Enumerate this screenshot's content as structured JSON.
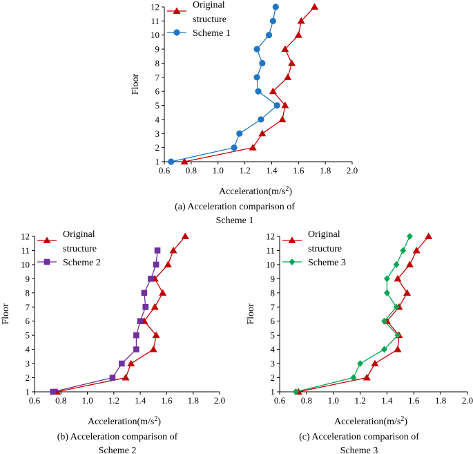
{
  "chart_data": [
    {
      "type": "line",
      "caption": "(a) Acceleration comparison of\nScheme 1",
      "xlabel": "Acceleration(m/s²)",
      "ylabel": "Floor",
      "xlim": [
        0.6,
        2.0
      ],
      "ylim": [
        1,
        12
      ],
      "x_ticks": [
        "0.6",
        "0.8",
        "1.0",
        "1.2",
        "1.4",
        "1.6",
        "1.8",
        "2.0"
      ],
      "y_ticks": [
        "1",
        "2",
        "3",
        "4",
        "5",
        "6",
        "7",
        "8",
        "9",
        "10",
        "11",
        "12"
      ],
      "grid": false,
      "legend_position": "top-left",
      "series": [
        {
          "name": "Original\nstructure",
          "color": "#c00000",
          "marker": "triangle",
          "x": [
            0.75,
            1.26,
            1.33,
            1.48,
            1.5,
            1.41,
            1.52,
            1.55,
            1.5,
            1.6,
            1.62,
            1.72
          ],
          "y": [
            1,
            2,
            3,
            4,
            5,
            6,
            7,
            8,
            9,
            10,
            11,
            12
          ]
        },
        {
          "name": "Scheme 1",
          "color": "#1f77c4",
          "marker": "circle",
          "x": [
            0.65,
            1.12,
            1.16,
            1.32,
            1.44,
            1.3,
            1.29,
            1.33,
            1.29,
            1.38,
            1.41,
            1.43
          ],
          "y": [
            1,
            2,
            3,
            4,
            5,
            6,
            7,
            8,
            9,
            10,
            11,
            12
          ]
        }
      ]
    },
    {
      "type": "line",
      "caption": "(b) Acceleration comparison of\nScheme 2",
      "xlabel": "Acceleration(m/s²)",
      "ylabel": "Floor",
      "xlim": [
        0.6,
        2.0
      ],
      "ylim": [
        1,
        12
      ],
      "x_ticks": [
        "0.6",
        "0.8",
        "1.0",
        "1.2",
        "1.4",
        "1.6",
        "1.8",
        "2.0"
      ],
      "y_ticks": [
        "1",
        "2",
        "3",
        "4",
        "5",
        "6",
        "7",
        "8",
        "9",
        "10",
        "11",
        "12"
      ],
      "grid": false,
      "legend_position": "top-left",
      "series": [
        {
          "name": "Original\nstructure",
          "color": "#c00000",
          "marker": "triangle",
          "x": [
            0.77,
            1.29,
            1.33,
            1.5,
            1.52,
            1.43,
            1.51,
            1.57,
            1.51,
            1.61,
            1.65,
            1.74
          ],
          "y": [
            1,
            2,
            3,
            4,
            5,
            6,
            7,
            8,
            9,
            10,
            11,
            12
          ]
        },
        {
          "name": "Scheme 2",
          "color": "#7030a0",
          "marker": "square",
          "x": [
            0.74,
            1.19,
            1.26,
            1.37,
            1.37,
            1.4,
            1.44,
            1.43,
            1.48,
            1.52,
            1.53
          ],
          "y": [
            1,
            2,
            3,
            4,
            5,
            6,
            7,
            8,
            9,
            10,
            11
          ]
        }
      ]
    },
    {
      "type": "line",
      "caption": "(c) Acceleration comparison of\nScheme 3",
      "xlabel": "Acceleration(m/s²)",
      "ylabel": "Floor",
      "xlim": [
        0.6,
        2.0
      ],
      "ylim": [
        1,
        12
      ],
      "x_ticks": [
        "0.6",
        "0.8",
        "1.0",
        "1.2",
        "1.4",
        "1.6",
        "1.8",
        "2.0"
      ],
      "y_ticks": [
        "1",
        "2",
        "3",
        "4",
        "5",
        "6",
        "7",
        "8",
        "9",
        "10",
        "11",
        "12"
      ],
      "grid": false,
      "legend_position": "top-left",
      "series": [
        {
          "name": "Original\nstructure",
          "color": "#c00000",
          "marker": "triangle",
          "x": [
            0.74,
            1.25,
            1.31,
            1.48,
            1.49,
            1.4,
            1.49,
            1.55,
            1.48,
            1.57,
            1.62,
            1.71
          ],
          "y": [
            1,
            2,
            3,
            4,
            5,
            6,
            7,
            8,
            9,
            10,
            11,
            12
          ]
        },
        {
          "name": "Scheme 3",
          "color": "#00a651",
          "marker": "diamond",
          "x": [
            0.72,
            1.15,
            1.2,
            1.38,
            1.48,
            1.38,
            1.47,
            1.4,
            1.4,
            1.47,
            1.52,
            1.57
          ],
          "y": [
            1,
            2,
            3,
            4,
            5,
            6,
            7,
            8,
            9,
            10,
            11,
            12
          ]
        }
      ]
    }
  ]
}
